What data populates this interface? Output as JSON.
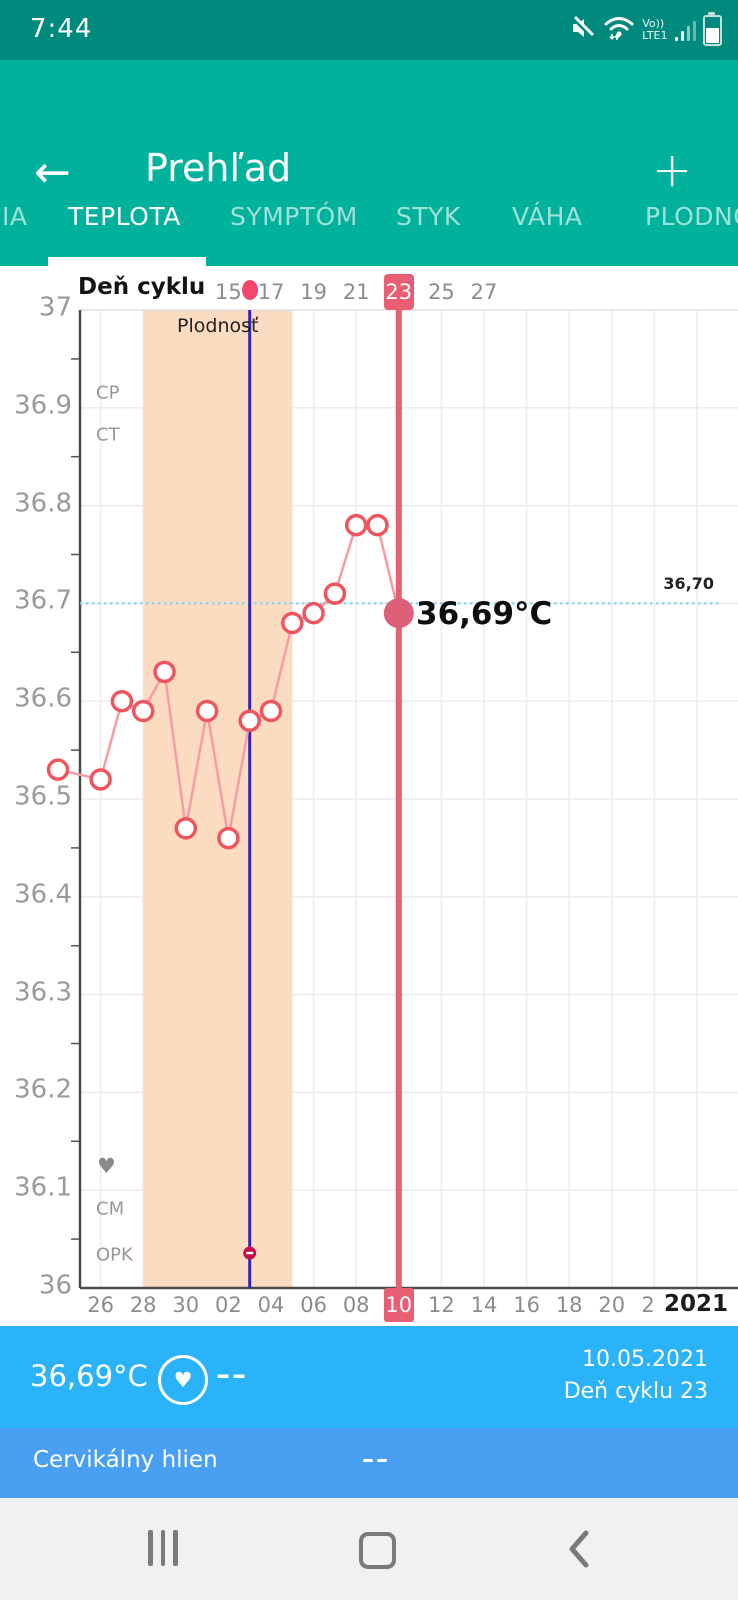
{
  "status_bar": {
    "time": "7:44",
    "carrier_tech": "Vo))",
    "carrier_net": "LTE1"
  },
  "header": {
    "back_glyph": "←",
    "title": "Prehľad",
    "add_glyph": "+"
  },
  "tabs": {
    "active": "TEPLOTA",
    "items": [
      {
        "label": "IA"
      },
      {
        "label": "TEPLOTA"
      },
      {
        "label": "SYMPTÓM"
      },
      {
        "label": "STYK"
      },
      {
        "label": "VÁHA"
      },
      {
        "label": "PLODNOS"
      }
    ]
  },
  "chart": {
    "day_axis_label": "Deň cyklu",
    "cycle_day_ticks": [
      {
        "label": "15",
        "offset": 8
      },
      {
        "label": "17",
        "offset": 10
      },
      {
        "label": "19",
        "offset": 12
      },
      {
        "label": "21",
        "offset": 14
      },
      {
        "label": "23",
        "offset": 16,
        "selected": true
      },
      {
        "label": "25",
        "offset": 18
      },
      {
        "label": "27",
        "offset": 20
      }
    ],
    "fertility_label": "Plodnosť",
    "y_ticks": [
      "37",
      "36.9",
      "36.8",
      "36.7",
      "36.6",
      "36.5",
      "36.4",
      "36.3",
      "36.2",
      "36.1",
      "36"
    ],
    "track_labels": {
      "cp": "CP",
      "ct": "CT",
      "heart": "♥",
      "cm": "CM",
      "opk": "OPK"
    },
    "coverline_label": "36,70",
    "selected_value_label": "36,69°C",
    "date_ticks": [
      {
        "label": "26",
        "offset": 2
      },
      {
        "label": "28",
        "offset": 4
      },
      {
        "label": "30",
        "offset": 6
      },
      {
        "label": "02",
        "offset": 8
      },
      {
        "label": "04",
        "offset": 10
      },
      {
        "label": "06",
        "offset": 12
      },
      {
        "label": "08",
        "offset": 14
      },
      {
        "label": "10",
        "offset": 16,
        "selected": true
      },
      {
        "label": "12",
        "offset": 18
      },
      {
        "label": "14",
        "offset": 20
      },
      {
        "label": "16",
        "offset": 22
      },
      {
        "label": "18",
        "offset": 24
      },
      {
        "label": "20",
        "offset": 26
      },
      {
        "label": "2",
        "offset": 27.7
      }
    ],
    "year_label": "2021"
  },
  "chart_data": {
    "type": "line",
    "x_top_label": "Deň cyklu",
    "x_dates": [
      "24.04",
      "26.04",
      "27.04",
      "28.04",
      "29.04",
      "30.04",
      "01.05",
      "02.05",
      "03.05",
      "04.05",
      "05.05",
      "06.05",
      "07.05",
      "08.05",
      "09.05",
      "10.05"
    ],
    "cycle_days": [
      7,
      9,
      10,
      11,
      12,
      13,
      14,
      15,
      16,
      17,
      18,
      19,
      20,
      21,
      22,
      23
    ],
    "day_offsets": [
      0,
      2,
      3,
      4,
      5,
      6,
      7,
      8,
      9,
      10,
      11,
      12,
      13,
      14,
      15,
      16
    ],
    "values": [
      36.53,
      36.52,
      36.6,
      36.59,
      36.63,
      36.47,
      36.59,
      36.46,
      36.58,
      36.59,
      36.68,
      36.69,
      36.71,
      36.78,
      36.78,
      36.69
    ],
    "ylim": [
      36,
      37
    ],
    "grid": true,
    "coverline": 36.7,
    "coverline_label": "36,70",
    "selected_index": 15,
    "selected_value": 36.69,
    "ovulation_day_offset": 9,
    "fertile_window_offsets": [
      4,
      11
    ],
    "colors": {
      "accent_teal": "#00b19c",
      "status_teal": "#00897d",
      "selected_red": "#e85e72",
      "point_stroke": "#f2545e",
      "series_line": "#f89aa4",
      "fertile_band": "#fcdcc0",
      "ovulation_line": "#2f25bd",
      "coverline": "#8fd2ee",
      "selected_dot": "#dc6077",
      "opk_marker": "#c2104d",
      "info_bar_1": "#2ab3f8",
      "info_bar_2": "#49a0f3"
    }
  },
  "info_panel": {
    "temperature": "36,69°C",
    "heart_value": "––",
    "date": "10.05.2021",
    "cycle_day_text": "Deň cyklu 23",
    "cm_label": "Cervikálny hlien",
    "cm_value": "––"
  }
}
